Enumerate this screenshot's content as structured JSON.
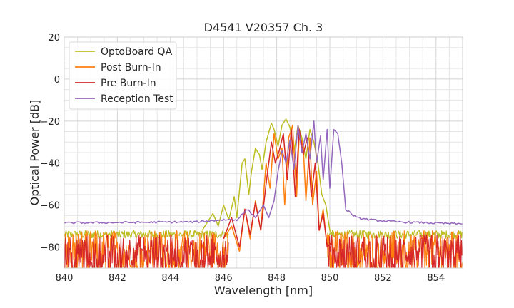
{
  "chart_data": {
    "type": "line",
    "title": "D4541 V20357 Ch. 3",
    "xlabel": "Wavelength [nm]",
    "ylabel": "Optical Power [dB]",
    "xlim": [
      840,
      855
    ],
    "ylim": [
      -90,
      20
    ],
    "xticks": [
      840,
      842,
      844,
      846,
      848,
      850,
      852,
      854
    ],
    "yticks": [
      20,
      0,
      -20,
      -40,
      -60,
      -80
    ],
    "ytick_labels": [
      "20",
      "0",
      "−20",
      "−40",
      "−60",
      "−80"
    ],
    "grid": true,
    "legend_position": "top-left",
    "noise_floor": {
      "OptoBoard QA": [
        -76,
        -72
      ],
      "Post Burn-In": [
        -90,
        -72
      ],
      "Pre Burn-In": [
        -90,
        -74
      ],
      "Reception Test": [
        -69,
        -68
      ]
    },
    "series": [
      {
        "name": "OptoBoard QA",
        "color": "#bcbd22",
        "x": [
          845.2,
          845.6,
          845.8,
          846.0,
          846.2,
          846.4,
          846.5,
          846.7,
          846.8,
          846.95,
          847.05,
          847.2,
          847.35,
          847.45,
          847.6,
          847.8,
          847.9,
          848.05,
          848.2,
          848.35,
          848.5,
          848.65,
          848.8,
          848.95,
          849.1,
          849.25,
          849.4,
          849.55,
          849.7,
          849.85,
          850.0,
          850.15
        ],
        "values": [
          -72,
          -64,
          -70,
          -60,
          -67,
          -56,
          -66,
          -40,
          -38,
          -55,
          -44,
          -33,
          -36,
          -43,
          -30,
          -21,
          -24,
          -32,
          -22,
          -19,
          -23,
          -35,
          -22,
          -28,
          -38,
          -24,
          -30,
          -40,
          -55,
          -60,
          -72,
          -75
        ]
      },
      {
        "name": "Post Burn-In",
        "color": "#ff7f0e",
        "x": [
          846.0,
          846.3,
          846.6,
          846.8,
          847.0,
          847.2,
          847.4,
          847.6,
          847.75,
          847.9,
          848.05,
          848.2,
          848.3,
          848.45,
          848.6,
          848.75,
          848.85,
          849.0,
          849.1,
          849.25,
          849.35,
          849.5,
          849.6,
          849.75,
          849.9,
          850.05
        ],
        "values": [
          -76,
          -70,
          -82,
          -62,
          -76,
          -58,
          -72,
          -40,
          -52,
          -26,
          -38,
          -33,
          -60,
          -28,
          -22,
          -56,
          -26,
          -32,
          -58,
          -28,
          -60,
          -44,
          -72,
          -62,
          -80,
          -78
        ]
      },
      {
        "name": "Pre Burn-In",
        "color": "#d62728",
        "x": [
          846.0,
          846.3,
          846.6,
          846.8,
          847.0,
          847.2,
          847.4,
          847.6,
          847.8,
          847.95,
          848.1,
          848.25,
          848.4,
          848.55,
          848.7,
          848.85,
          849.0,
          849.15,
          849.3,
          849.45,
          849.6,
          849.75,
          849.9,
          850.05
        ],
        "values": [
          -76,
          -66,
          -80,
          -62,
          -74,
          -59,
          -72,
          -50,
          -30,
          -40,
          -34,
          -26,
          -48,
          -24,
          -56,
          -24,
          -36,
          -28,
          -56,
          -40,
          -72,
          -64,
          -80,
          -78
        ]
      },
      {
        "name": "Reception Test",
        "color": "#9467bd",
        "x": [
          840,
          845.0,
          846.0,
          846.5,
          846.9,
          847.2,
          847.5,
          847.7,
          847.9,
          848.05,
          848.2,
          848.35,
          848.5,
          848.65,
          848.8,
          848.95,
          849.1,
          849.25,
          849.4,
          849.5,
          849.65,
          849.75,
          849.9,
          850.0,
          850.15,
          850.3,
          850.45,
          850.6,
          851.0,
          851.5,
          852.5,
          855.0
        ],
        "values": [
          -68.5,
          -68,
          -67,
          -67,
          -62,
          -66,
          -60,
          -66,
          -58,
          -44,
          -34,
          -40,
          -29,
          -43,
          -22,
          -35,
          -26,
          -38,
          -20,
          -40,
          -27,
          -48,
          -24,
          -52,
          -24,
          -26,
          -40,
          -62,
          -66,
          -67,
          -68,
          -69
        ]
      }
    ]
  }
}
